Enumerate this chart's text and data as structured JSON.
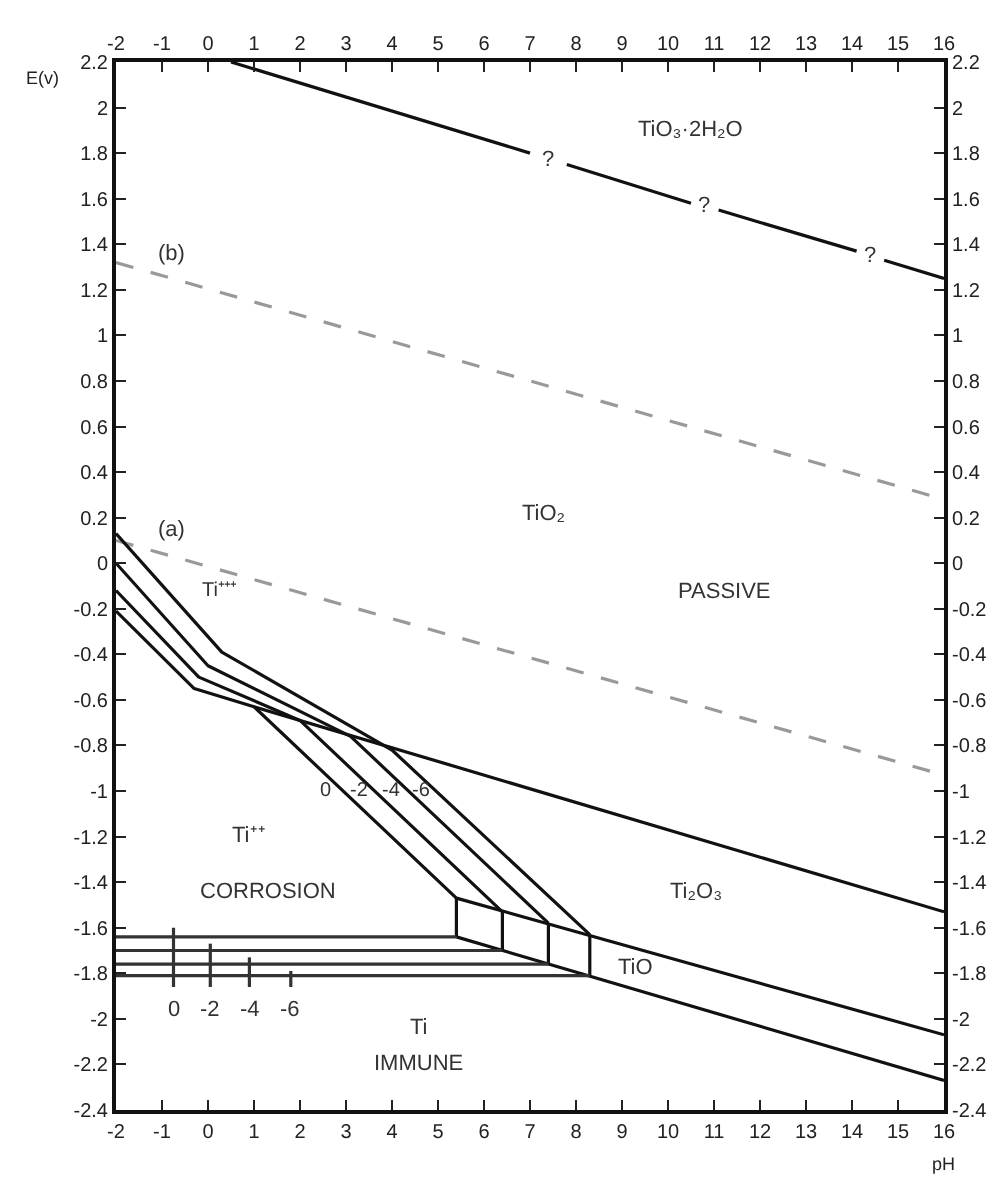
{
  "chart_data": {
    "type": "line",
    "xlabel": "pH",
    "ylabel": "E(v)",
    "marker": "none",
    "grid": false,
    "xlim": [
      -2,
      16
    ],
    "xticks": [
      -2,
      -1,
      0,
      1,
      2,
      3,
      4,
      5,
      6,
      7,
      8,
      9,
      10,
      11,
      12,
      13,
      14,
      15,
      16
    ],
    "x2lim": [
      -2,
      16
    ],
    "x2ticks": [
      -2,
      -1,
      0,
      1,
      2,
      3,
      4,
      5,
      6,
      7,
      8,
      9,
      10,
      11,
      12,
      13,
      14,
      15,
      16
    ],
    "ylim": [
      -2.4,
      2.2
    ],
    "yticks": [
      -2.4,
      -2.2,
      -2,
      -1.8,
      -1.6,
      -1.4,
      -1.2,
      -1,
      -0.8,
      -0.6,
      -0.4,
      -0.2,
      0,
      0.2,
      0.4,
      0.6,
      0.8,
      1,
      1.2,
      1.4,
      1.6,
      1.8,
      2,
      2.2
    ],
    "y2lim": [
      -2.4,
      2.2
    ],
    "y2ticks": [
      -2.4,
      -2.2,
      -2,
      -1.8,
      -1.6,
      -1.4,
      -1.2,
      -1,
      -0.8,
      -0.6,
      -0.4,
      -0.2,
      0,
      0.2,
      0.4,
      0.6,
      0.8,
      1,
      1.2,
      1.4,
      1.6,
      1.8,
      2,
      2.2
    ],
    "series": [
      {
        "color": "#111111",
        "line_style": "solid",
        "x": [
          0.5,
          7.0,
          null,
          7.8,
          10.5,
          null,
          11.1,
          14.1,
          null,
          14.7,
          16
        ],
        "values": [
          2.2,
          1.8,
          null,
          1.75,
          1.58,
          null,
          1.55,
          1.37,
          null,
          1.33,
          1.25
        ]
      },
      {
        "color": "#999999",
        "line_style": "dashed",
        "x": [
          -2,
          16
        ],
        "values": [
          1.32,
          0.28
        ]
      },
      {
        "color": "#999999",
        "line_style": "dashed",
        "x": [
          -2,
          16
        ],
        "values": [
          0.1,
          -0.93
        ]
      },
      {
        "color": "#111111",
        "line_style": "solid",
        "x": [
          1.0,
          16
        ],
        "values": [
          -0.63,
          -1.53
        ]
      },
      {
        "color": "#111111",
        "line_style": "solid",
        "x": [
          -2,
          -0.3,
          1.0,
          5.4
        ],
        "values": [
          -0.21,
          -0.55,
          -0.63,
          -1.47
        ]
      },
      {
        "color": "#111111",
        "line_style": "solid",
        "x": [
          -2,
          -0.2,
          2.0,
          6.4
        ],
        "values": [
          -0.12,
          -0.5,
          -0.69,
          -1.53
        ]
      },
      {
        "color": "#111111",
        "line_style": "solid",
        "x": [
          -2,
          0.0,
          3.1,
          7.4
        ],
        "values": [
          0.0,
          -0.45,
          -0.76,
          -1.58
        ]
      },
      {
        "color": "#111111",
        "line_style": "solid",
        "x": [
          -2,
          0.3,
          4.0,
          8.3
        ],
        "values": [
          0.13,
          -0.39,
          -0.82,
          -1.63
        ]
      },
      {
        "color": "#111111",
        "line_style": "solid",
        "x": [
          5.4,
          16
        ],
        "values": [
          -1.47,
          -2.07
        ]
      },
      {
        "color": "#111111",
        "line_style": "solid",
        "x": [
          5.4,
          16
        ],
        "values": [
          -1.64,
          -2.27
        ]
      },
      {
        "color": "#111111",
        "line_style": "solid",
        "x": [
          5.4,
          5.4,
          null,
          6.4,
          6.4,
          null,
          7.4,
          7.4,
          null,
          8.3,
          8.3
        ],
        "values": [
          -1.47,
          -1.64,
          null,
          -1.53,
          -1.7,
          null,
          -1.58,
          -1.76,
          null,
          -1.63,
          -1.81
        ]
      },
      {
        "color": "#333333",
        "line_style": "solid",
        "x": [
          -2,
          5.4
        ],
        "values": [
          -1.64,
          -1.64
        ]
      },
      {
        "color": "#333333",
        "line_style": "solid",
        "x": [
          -2,
          6.4
        ],
        "values": [
          -1.7,
          -1.7
        ]
      },
      {
        "color": "#333333",
        "line_style": "solid",
        "x": [
          -2,
          7.4
        ],
        "values": [
          -1.76,
          -1.76
        ]
      },
      {
        "color": "#333333",
        "line_style": "solid",
        "x": [
          -2,
          8.3
        ],
        "values": [
          -1.81,
          -1.81
        ]
      },
      {
        "color": "#333333",
        "line_style": "solid",
        "x": [
          -0.75,
          -0.75,
          null,
          0.05,
          0.05,
          null,
          0.9,
          0.9,
          null,
          1.8,
          1.8
        ],
        "values": [
          -1.6,
          -1.86,
          null,
          -1.67,
          -1.86,
          null,
          -1.73,
          -1.86,
          null,
          -1.79,
          -1.86
        ]
      }
    ],
    "annotations": [
      "TiO₃·2H₂O",
      "?",
      "?",
      "?",
      "(b)",
      "(a)",
      "TiO₂",
      "PASSIVE",
      "Ti⁺⁺⁺",
      "0",
      "-2",
      "-4",
      "-6",
      "Ti⁺⁺",
      "CORROSION",
      "Ti₂O₃",
      "TiO",
      "0",
      "-2",
      "-4",
      "-6",
      "Ti",
      "IMMUNE"
    ]
  }
}
